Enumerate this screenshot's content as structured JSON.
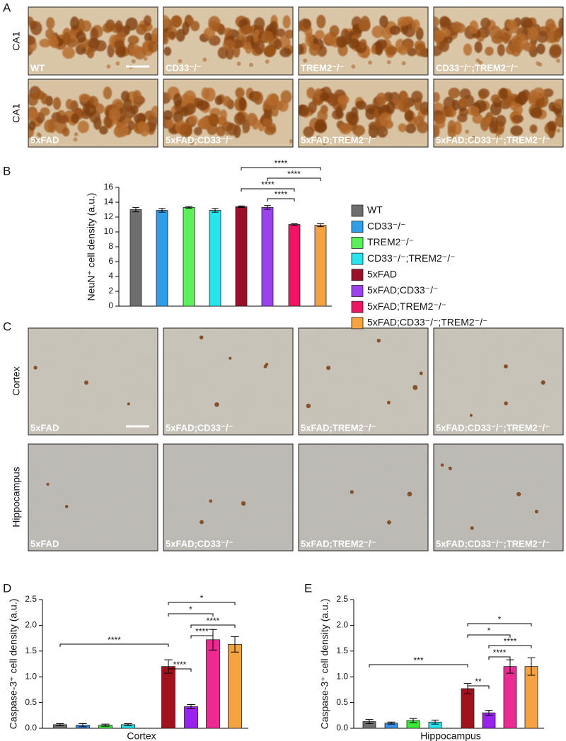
{
  "panel_labels": {
    "a": "A",
    "b": "B",
    "c": "C",
    "d": "D",
    "e": "E"
  },
  "panel_a": {
    "row_labels": [
      "CA1",
      "CA1"
    ],
    "captions": [
      "WT",
      "CD33⁻/⁻",
      "TREM2⁻/⁻",
      "CD33⁻/⁻;TREM2⁻/⁻",
      "5xFAD",
      "5xFAD;CD33⁻/⁻",
      "5xFAD;TREM2⁻/⁻",
      "5xFAD;CD33⁻/⁻;TREM2⁻/⁻"
    ]
  },
  "panel_c": {
    "row_labels": [
      "Cortex",
      "Hippocampus"
    ],
    "captions": [
      "5xFAD",
      "5xFAD;CD33⁻/⁻",
      "5xFAD;TREM2⁻/⁻",
      "5xFAD;CD33⁻/⁻;TREM2⁻/⁻",
      "5xFAD",
      "5xFAD;CD33⁻/⁻",
      "5xFAD;TREM2⁻/⁻",
      "5xFAD;CD33⁻/⁻;TREM2⁻/⁻"
    ]
  },
  "chart_data": [
    {
      "type": "bar",
      "ylabel": "NeuN⁺ cell density (a.u.)",
      "categories": [
        "WT",
        "CD33⁻/⁻",
        "TREM2⁻/⁻",
        "CD33⁻/⁻;TREM2⁻/⁻",
        "5xFAD",
        "5xFAD;CD33⁻/⁻",
        "5xFAD;TREM2⁻/⁻",
        "5xFAD;CD33⁻/⁻;TREM2⁻/⁻"
      ],
      "colors": [
        "#6e6e6e",
        "#2f9ee6",
        "#5cf05a",
        "#25e6ee",
        "#9a1026",
        "#9b42ee",
        "#ee1565",
        "#f5a340"
      ],
      "values": [
        13.0,
        12.9,
        13.3,
        12.9,
        13.4,
        13.3,
        11.0,
        10.9
      ],
      "errors": [
        0.3,
        0.25,
        0.1,
        0.25,
        0.1,
        0.25,
        0.1,
        0.2
      ],
      "ylim": [
        0,
        16
      ],
      "yticks": [
        0,
        2,
        4,
        6,
        8,
        10,
        12,
        14,
        16
      ],
      "legend": "right",
      "annotations": [
        {
          "from": 4,
          "to": 7,
          "label": "****"
        },
        {
          "from": 5,
          "to": 7,
          "label": "****"
        },
        {
          "from": 4,
          "to": 6,
          "label": "****"
        },
        {
          "from": 5,
          "to": 6,
          "label": "****"
        }
      ]
    },
    {
      "type": "bar",
      "xlabel": "Cortex",
      "ylabel": "Caspase-3⁺ cell density (a.u.)",
      "categories": [
        null,
        null,
        null,
        null,
        null,
        null,
        null,
        null
      ],
      "colors": [
        "#6e6e6e",
        "#3a8ee6",
        "#3ee83a",
        "#25e6ee",
        "#a0121c",
        "#9a22ee",
        "#ee2a92",
        "#f5a340"
      ],
      "values": [
        0.07,
        0.06,
        0.06,
        0.07,
        1.2,
        0.42,
        1.72,
        1.63
      ],
      "errors": [
        0.02,
        0.03,
        0.02,
        0.02,
        0.13,
        0.04,
        0.2,
        0.15
      ],
      "ylim": [
        0,
        2.5
      ],
      "yticks": [
        {
          "value": 0,
          "label": "0.0"
        },
        0.5,
        {
          "value": 1,
          "label": "1.0"
        },
        1.5,
        {
          "value": 2,
          "label": "2.0"
        },
        2.5
      ],
      "annotations": [
        {
          "from": 4,
          "to": 7,
          "label": "*"
        },
        {
          "from": 4,
          "to": 6,
          "label": "*"
        },
        {
          "from": 5,
          "to": 7,
          "label": "****"
        },
        {
          "from": 5,
          "to": 6,
          "label": "****"
        },
        {
          "from": 0,
          "to": 4,
          "label": "****"
        },
        {
          "from": 4,
          "to": 5,
          "label": "****"
        }
      ]
    },
    {
      "type": "bar",
      "xlabel": "Hippocampus",
      "ylabel": "Caspase-3⁺ cell density (a.u.)",
      "categories": [
        null,
        null,
        null,
        null,
        null,
        null,
        null,
        null
      ],
      "colors": [
        "#6e6e6e",
        "#3a8ee6",
        "#3ee83a",
        "#25e6ee",
        "#a0121c",
        "#9a22ee",
        "#ee2a92",
        "#f5a340"
      ],
      "values": [
        0.13,
        0.1,
        0.15,
        0.12,
        0.77,
        0.3,
        1.2,
        1.2
      ],
      "errors": [
        0.04,
        0.02,
        0.04,
        0.04,
        0.1,
        0.05,
        0.13,
        0.17
      ],
      "ylim": [
        0,
        2.5
      ],
      "yticks": [
        {
          "value": 0,
          "label": "0.0"
        },
        0.5,
        {
          "value": 1,
          "label": "1.0"
        },
        1.5,
        {
          "value": 2,
          "label": "2.0"
        },
        2.5
      ],
      "annotations": [
        {
          "from": 4,
          "to": 7,
          "label": "*"
        },
        {
          "from": 4,
          "to": 6,
          "label": "*"
        },
        {
          "from": 5,
          "to": 7,
          "label": "****"
        },
        {
          "from": 5,
          "to": 6,
          "label": "****"
        },
        {
          "from": 0,
          "to": 4,
          "label": "***"
        },
        {
          "from": 4,
          "to": 5,
          "label": "**"
        }
      ]
    }
  ]
}
